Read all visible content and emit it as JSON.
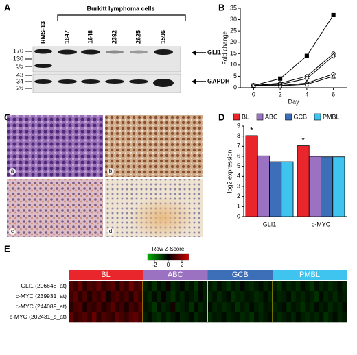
{
  "blot": {
    "panel": "A",
    "title": "Burkitt lymphoma cells",
    "lanes": [
      "RMS-13",
      "1647",
      "1648",
      "2392",
      "2625",
      "1596"
    ],
    "markers": [
      170,
      130,
      95,
      43,
      34,
      26
    ],
    "proteins": [
      "GLI1",
      "GAPDH"
    ]
  },
  "ihc": {
    "panel": "C",
    "labels": [
      "a",
      "b",
      "c",
      "d"
    ]
  },
  "chart_data": [
    {
      "type": "line",
      "panel": "B",
      "ylabel": "Fold change",
      "xlabel": "Day",
      "x": [
        0,
        2,
        4,
        6
      ],
      "xlim": [
        -1,
        7
      ],
      "xticks": [
        0,
        2,
        4,
        6
      ],
      "ylim": [
        0,
        35
      ],
      "yticks": [
        0,
        5,
        10,
        15,
        20,
        25,
        30,
        35
      ],
      "series": [
        {
          "color": "#000000",
          "fill": "#000000",
          "marker": "square",
          "values": [
            1,
            4,
            14,
            32
          ]
        },
        {
          "color": "#000000",
          "fill": "#ffffff",
          "marker": "circle",
          "values": [
            1,
            2,
            5,
            15
          ]
        },
        {
          "color": "#000000",
          "fill": "#ffffff",
          "marker": "diamond",
          "values": [
            1,
            1.5,
            4,
            14
          ]
        },
        {
          "color": "#000000",
          "fill": "#ffffff",
          "marker": "circle",
          "values": [
            1,
            1,
            2,
            6
          ]
        },
        {
          "color": "#000000",
          "fill": "#ffffff",
          "marker": "triangle",
          "values": [
            1,
            0.8,
            1.5,
            5
          ]
        }
      ]
    },
    {
      "type": "bar",
      "panel": "D",
      "ylabel": "log2 expression",
      "categories": [
        "GLI1",
        "c-MYC"
      ],
      "ylim": [
        0,
        9
      ],
      "yticks": [
        0,
        1,
        2,
        3,
        4,
        5,
        6,
        7,
        8,
        9
      ],
      "series": [
        {
          "name": "BL",
          "color": "#e8262b",
          "values": [
            8.05,
            7.05
          ]
        },
        {
          "name": "ABC",
          "color": "#9b72c2",
          "values": [
            6.05,
            6.0
          ]
        },
        {
          "name": "GCB",
          "color": "#3c6fb8",
          "values": [
            5.45,
            5.95
          ]
        },
        {
          "name": "PMBL",
          "color": "#3ec4ee",
          "values": [
            5.45,
            5.95
          ]
        }
      ],
      "annotations": [
        "*",
        "*"
      ]
    },
    {
      "type": "heatmap",
      "panel": "E",
      "key_title": "Row Z-Score",
      "zlim": [
        -3,
        3
      ],
      "zticks": [
        -2,
        0,
        2
      ],
      "colorscale": [
        "#00b000",
        "#000000",
        "#d00000"
      ],
      "separator_color": "#e8d000",
      "rows": [
        "GLI1 (206648_at)",
        "c-MYC (239931_at)",
        "c-MYC (244089_at)",
        "c-MYC (202431_s_at)"
      ],
      "groups": [
        {
          "name": "BL",
          "color": "#e8262b",
          "values": [
            [
              1.2,
              0.8,
              1.5,
              0.6,
              1.1,
              0.9,
              1.4,
              0.7,
              1.0,
              1.3,
              0.5,
              1.2,
              0.8,
              1.6,
              0.9,
              1.1
            ],
            [
              0.9,
              1.3,
              0.6,
              1.1,
              0.4,
              1.0,
              0.8,
              1.2,
              0.3,
              0.9,
              1.1,
              0.7,
              1.0,
              0.5,
              1.2,
              0.8
            ],
            [
              0.6,
              1.0,
              1.2,
              0.4,
              0.9,
              0.7,
              1.1,
              0.5,
              0.8,
              1.3,
              0.6,
              0.9,
              0.4,
              1.0,
              0.7,
              1.2
            ],
            [
              1.4,
              0.7,
              1.0,
              1.2,
              0.8,
              1.5,
              0.6,
              1.1,
              0.9,
              0.7,
              1.3,
              1.0,
              0.8,
              1.2,
              1.4,
              0.9
            ]
          ]
        },
        {
          "name": "ABC",
          "color": "#9b72c2",
          "values": [
            [
              -0.6,
              -0.3,
              -0.8,
              -0.2,
              -0.5,
              0.2,
              -0.7,
              -0.4,
              -0.1,
              -0.6,
              -0.3,
              -0.9,
              -0.2,
              -0.5
            ],
            [
              -0.4,
              -0.7,
              -0.2,
              -0.6,
              0.1,
              -0.5,
              -0.8,
              -0.3,
              -0.6,
              -0.2,
              -0.4,
              -0.7,
              -0.1,
              -0.5
            ],
            [
              -0.3,
              -0.5,
              -0.9,
              -0.2,
              -0.6,
              -0.4,
              0.3,
              -0.7,
              -0.5,
              -0.3,
              -0.8,
              -0.2,
              -0.6,
              -0.4
            ],
            [
              -0.5,
              -0.2,
              -0.6,
              -0.8,
              -0.3,
              -0.7,
              -0.4,
              -0.1,
              -0.6,
              -0.5,
              -0.2,
              -0.7,
              -0.4,
              -0.3
            ]
          ]
        },
        {
          "name": "GCB",
          "color": "#3c6fb8",
          "values": [
            [
              -0.4,
              -0.7,
              -0.2,
              -0.5,
              -0.8,
              -0.3,
              -0.6,
              -0.1,
              -0.5,
              -0.7,
              -0.4,
              -0.2,
              -0.6,
              -0.3
            ],
            [
              -0.6,
              -0.3,
              -0.7,
              -0.4,
              -0.2,
              -0.8,
              -0.5,
              -0.6,
              -0.3,
              -0.4,
              -0.7,
              -0.5,
              -0.2,
              -0.6
            ],
            [
              -0.2,
              -0.6,
              -0.4,
              -0.7,
              -0.5,
              -0.3,
              -0.8,
              -0.4,
              -0.6,
              -0.2,
              -0.5,
              -0.7,
              -0.3,
              -0.4
            ],
            [
              -0.7,
              -0.4,
              -0.5,
              -0.2,
              -0.6,
              -0.4,
              -0.3,
              -0.7,
              -0.5,
              -0.8,
              -0.3,
              -0.6,
              -0.4,
              -0.2
            ]
          ]
        },
        {
          "name": "PMBL",
          "color": "#3ec4ee",
          "values": [
            [
              -0.5,
              -0.8,
              -0.3,
              -0.6,
              -0.4,
              -0.7,
              -0.2,
              -0.5,
              -0.9,
              -0.3,
              -0.6,
              -0.4,
              -0.7,
              -0.5,
              -0.2,
              -0.6
            ],
            [
              -0.3,
              -0.6,
              -0.5,
              -0.2,
              -0.7,
              -0.4,
              -0.6,
              -0.3,
              -0.5,
              -0.8,
              -0.2,
              -0.6,
              -0.4,
              -0.7,
              -0.3,
              -0.5
            ],
            [
              -0.6,
              -0.4,
              -0.2,
              -0.7,
              -0.3,
              -0.5,
              -0.8,
              -0.4,
              -0.6,
              -0.2,
              -0.5,
              -0.3,
              -0.7,
              -0.4,
              -0.6,
              -0.2
            ],
            [
              -0.4,
              -0.7,
              -0.5,
              -0.3,
              -0.6,
              -0.2,
              -0.5,
              -0.7,
              -0.4,
              -0.6,
              -0.3,
              -0.8,
              -0.5,
              -0.2,
              -0.6,
              -0.4
            ]
          ]
        }
      ]
    }
  ]
}
